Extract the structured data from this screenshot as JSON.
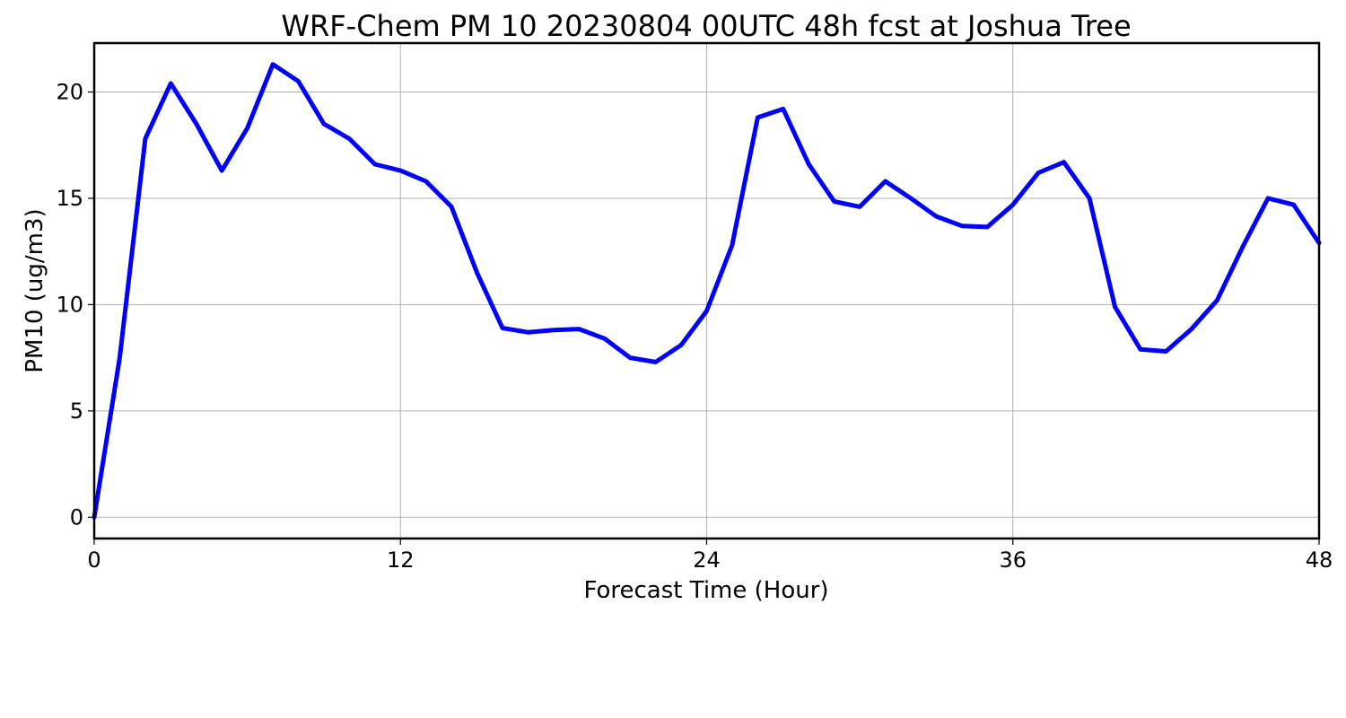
{
  "chart_data": {
    "type": "line",
    "title": "WRF-Chem PM 10  20230804 00UTC 48h fcst at Joshua Tree",
    "xlabel": "Forecast Time (Hour)",
    "ylabel": "PM10  (ug/m3)",
    "xlim": [
      0,
      48
    ],
    "ylim": [
      -1.0,
      22.3
    ],
    "xticks": [
      0,
      12,
      24,
      36,
      48
    ],
    "yticks": [
      0,
      5,
      10,
      15,
      20
    ],
    "grid": true,
    "line_color": "#0000ff",
    "series": [
      {
        "x": [
          0,
          1,
          2,
          3,
          4,
          5,
          6,
          7,
          8,
          9,
          10,
          11,
          12,
          13,
          14,
          15,
          16,
          17,
          18,
          19,
          20,
          21,
          22,
          23,
          24,
          25,
          26,
          27,
          28,
          29,
          30,
          31,
          32,
          33,
          34,
          35,
          36,
          37,
          38,
          39,
          40,
          41,
          42,
          43,
          44,
          45,
          46,
          47,
          48
        ],
        "values": [
          0,
          7.5,
          17.8,
          20.4,
          18.5,
          16.3,
          18.3,
          21.3,
          20.5,
          18.5,
          17.8,
          16.6,
          16.3,
          15.8,
          14.6,
          11.5,
          8.9,
          8.7,
          8.8,
          8.85,
          8.4,
          7.5,
          7.3,
          8.1,
          9.7,
          12.8,
          18.8,
          19.2,
          16.6,
          14.85,
          14.6,
          15.8,
          15.0,
          14.15,
          13.7,
          13.65,
          14.7,
          16.2,
          16.7,
          15.0,
          9.9,
          7.9,
          7.8,
          8.85,
          10.2,
          12.7,
          15.0,
          14.7,
          12.9
        ]
      }
    ]
  }
}
